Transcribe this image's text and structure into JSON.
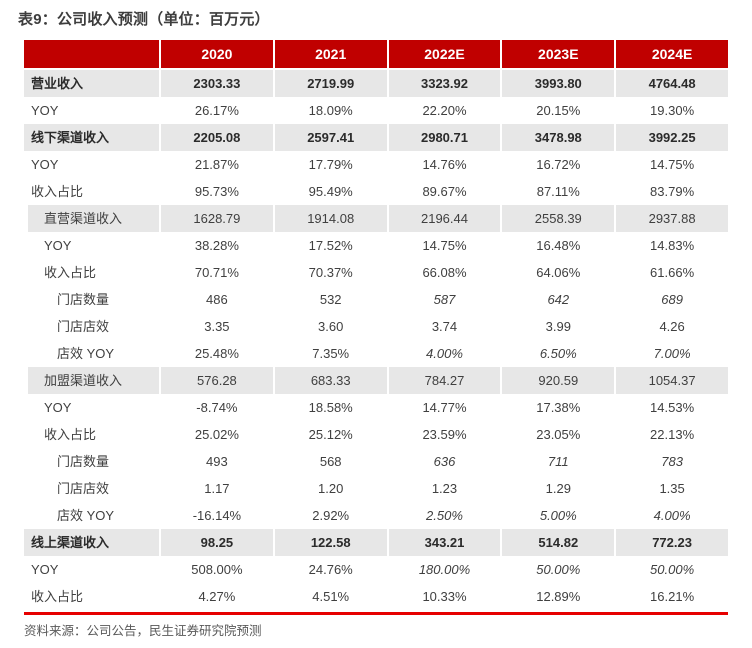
{
  "title": "表9：公司收入预测（单位：百万元）",
  "footer": "资料来源：公司公告，民生证券研究院预测",
  "colors": {
    "header_bg": "#C00000",
    "highlight_row_bg": "#E7E7E7",
    "divider_red": "#E60000",
    "header_text": "#FFFFFF",
    "body_text": "#404040"
  },
  "table": {
    "columns": [
      "",
      "2020",
      "2021",
      "2022E",
      "2023E",
      "2024E"
    ],
    "rows": [
      {
        "label": "营业收入",
        "style": "section",
        "indent": 0,
        "values": [
          "2303.33",
          "2719.99",
          "3323.92",
          "3993.80",
          "4764.48"
        ],
        "italic_cols": []
      },
      {
        "label": "YOY",
        "style": "normal",
        "indent": 0,
        "values": [
          "26.17%",
          "18.09%",
          "22.20%",
          "20.15%",
          "19.30%"
        ],
        "italic_cols": []
      },
      {
        "label": "线下渠道收入",
        "style": "section",
        "indent": 0,
        "values": [
          "2205.08",
          "2597.41",
          "2980.71",
          "3478.98",
          "3992.25"
        ],
        "italic_cols": []
      },
      {
        "label": "YOY",
        "style": "normal",
        "indent": 0,
        "values": [
          "21.87%",
          "17.79%",
          "14.76%",
          "16.72%",
          "14.75%"
        ],
        "italic_cols": []
      },
      {
        "label": "收入占比",
        "style": "normal",
        "indent": 0,
        "values": [
          "95.73%",
          "95.49%",
          "89.67%",
          "87.11%",
          "83.79%"
        ],
        "italic_cols": []
      },
      {
        "label": "直营渠道收入",
        "style": "sub",
        "indent": 1,
        "values": [
          "1628.79",
          "1914.08",
          "2196.44",
          "2558.39",
          "2937.88"
        ],
        "italic_cols": []
      },
      {
        "label": "YOY",
        "style": "normal",
        "indent": 1,
        "values": [
          "38.28%",
          "17.52%",
          "14.75%",
          "16.48%",
          "14.83%"
        ],
        "italic_cols": []
      },
      {
        "label": "收入占比",
        "style": "normal",
        "indent": 1,
        "values": [
          "70.71%",
          "70.37%",
          "66.08%",
          "64.06%",
          "61.66%"
        ],
        "italic_cols": []
      },
      {
        "label": "门店数量",
        "style": "normal",
        "indent": 2,
        "values": [
          "486",
          "532",
          "587",
          "642",
          "689"
        ],
        "italic_cols": [
          2,
          3,
          4
        ]
      },
      {
        "label": "门店店效",
        "style": "normal",
        "indent": 2,
        "values": [
          "3.35",
          "3.60",
          "3.74",
          "3.99",
          "4.26"
        ],
        "italic_cols": []
      },
      {
        "label": "店效 YOY",
        "style": "normal",
        "indent": 2,
        "values": [
          "25.48%",
          "7.35%",
          "4.00%",
          "6.50%",
          "7.00%"
        ],
        "italic_cols": [
          2,
          3,
          4
        ]
      },
      {
        "label": "加盟渠道收入",
        "style": "sub",
        "indent": 1,
        "values": [
          "576.28",
          "683.33",
          "784.27",
          "920.59",
          "1054.37"
        ],
        "italic_cols": []
      },
      {
        "label": "YOY",
        "style": "normal",
        "indent": 1,
        "values": [
          "-8.74%",
          "18.58%",
          "14.77%",
          "17.38%",
          "14.53%"
        ],
        "italic_cols": []
      },
      {
        "label": "收入占比",
        "style": "normal",
        "indent": 1,
        "values": [
          "25.02%",
          "25.12%",
          "23.59%",
          "23.05%",
          "22.13%"
        ],
        "italic_cols": []
      },
      {
        "label": "门店数量",
        "style": "normal",
        "indent": 2,
        "values": [
          "493",
          "568",
          "636",
          "711",
          "783"
        ],
        "italic_cols": [
          2,
          3,
          4
        ]
      },
      {
        "label": "门店店效",
        "style": "normal",
        "indent": 2,
        "values": [
          "1.17",
          "1.20",
          "1.23",
          "1.29",
          "1.35"
        ],
        "italic_cols": []
      },
      {
        "label": "店效 YOY",
        "style": "normal",
        "indent": 2,
        "values": [
          "-16.14%",
          "2.92%",
          "2.50%",
          "5.00%",
          "4.00%"
        ],
        "italic_cols": [
          2,
          3,
          4
        ]
      },
      {
        "label": "线上渠道收入",
        "style": "section",
        "indent": 0,
        "values": [
          "98.25",
          "122.58",
          "343.21",
          "514.82",
          "772.23"
        ],
        "italic_cols": []
      },
      {
        "label": "YOY",
        "style": "normal",
        "indent": 0,
        "values": [
          "508.00%",
          "24.76%",
          "180.00%",
          "50.00%",
          "50.00%"
        ],
        "italic_cols": [
          2,
          3,
          4
        ]
      },
      {
        "label": "收入占比",
        "style": "normal",
        "indent": 0,
        "values": [
          "4.27%",
          "4.51%",
          "10.33%",
          "12.89%",
          "16.21%"
        ],
        "italic_cols": []
      }
    ]
  }
}
